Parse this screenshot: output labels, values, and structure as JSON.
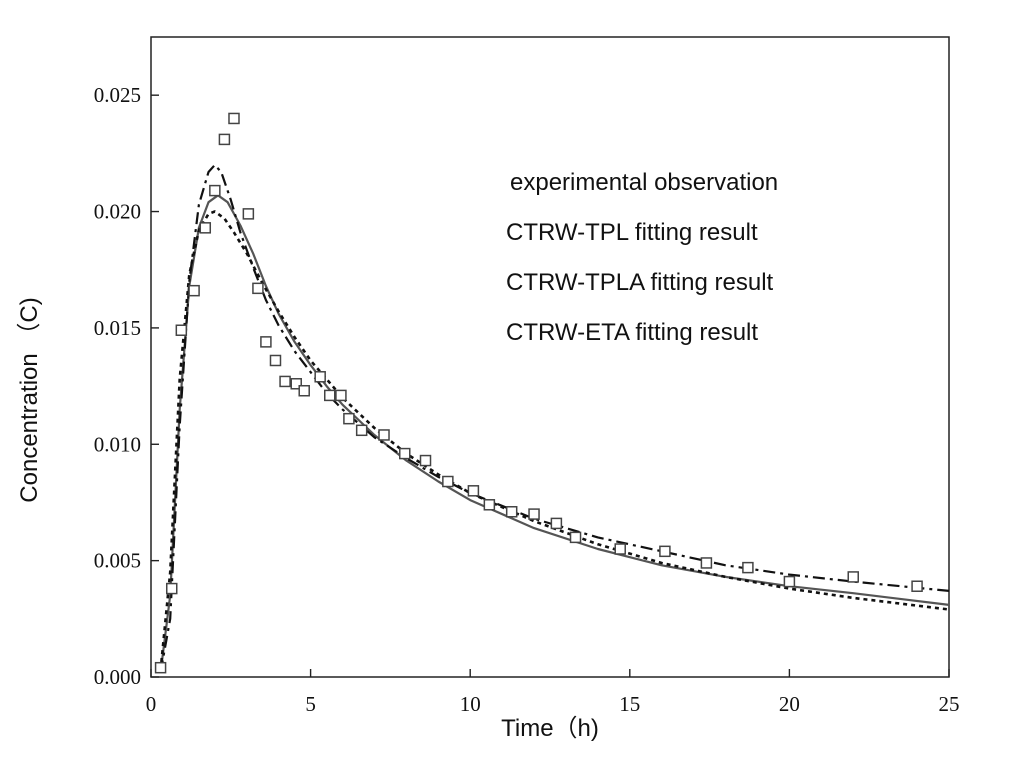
{
  "chart_data": {
    "type": "scatter",
    "title": "",
    "xlabel": "Time（h)",
    "ylabel": "Concentration （C)",
    "xlim": [
      0,
      25
    ],
    "ylim": [
      0,
      0.0275
    ],
    "xticks": [
      "0",
      "5",
      "10",
      "15",
      "20",
      "25"
    ],
    "yticks": [
      "0.000",
      "0.005",
      "0.010",
      "0.015",
      "0.020",
      "0.025"
    ],
    "grid": false,
    "legend_position": "top-right",
    "legend": [
      "experimental observation",
      "CTRW-TPL fitting result",
      "CTRW-TPLA fitting result",
      "CTRW-ETA fitting result"
    ],
    "series": [
      {
        "name": "experimental observation",
        "style": "square-marker",
        "x": [
          0.3,
          0.65,
          0.95,
          1.35,
          1.7,
          2.0,
          2.3,
          2.6,
          3.05,
          3.35,
          3.6,
          3.9,
          4.2,
          4.55,
          4.8,
          5.3,
          5.6,
          5.95,
          6.2,
          6.6,
          7.3,
          7.95,
          8.6,
          9.3,
          10.1,
          10.6,
          11.3,
          12.0,
          12.7,
          13.3,
          14.7,
          16.1,
          17.4,
          18.7,
          20.0,
          22.0,
          24.0
        ],
        "y": [
          0.0004,
          0.0038,
          0.0149,
          0.0166,
          0.0193,
          0.0209,
          0.0231,
          0.024,
          0.0199,
          0.0167,
          0.0144,
          0.0136,
          0.0127,
          0.0126,
          0.0123,
          0.0129,
          0.0121,
          0.0121,
          0.0111,
          0.0106,
          0.0104,
          0.0096,
          0.0093,
          0.0084,
          0.008,
          0.0074,
          0.0071,
          0.007,
          0.0066,
          0.006,
          0.0055,
          0.0054,
          0.0049,
          0.0047,
          0.0041,
          0.0043,
          0.0039
        ]
      },
      {
        "name": "CTRW-TPL fitting result",
        "style": "solid",
        "x": [
          0.3,
          0.6,
          0.9,
          1.2,
          1.5,
          1.8,
          2.1,
          2.4,
          2.8,
          3.2,
          3.6,
          4.0,
          4.5,
          5.0,
          5.5,
          6.0,
          7.0,
          8.0,
          9.0,
          10.0,
          12.0,
          14.0,
          16.0,
          18.0,
          20.0,
          22.0,
          25.0
        ],
        "y": [
          0.0002,
          0.0035,
          0.0115,
          0.0168,
          0.0193,
          0.0204,
          0.0207,
          0.0204,
          0.0194,
          0.0182,
          0.0168,
          0.0156,
          0.0144,
          0.0134,
          0.0125,
          0.0117,
          0.0104,
          0.0093,
          0.0084,
          0.0076,
          0.0064,
          0.0055,
          0.0048,
          0.0043,
          0.0039,
          0.0036,
          0.0031
        ]
      },
      {
        "name": "CTRW-TPLA fitting result",
        "style": "dash-dot",
        "x": [
          0.3,
          0.6,
          0.9,
          1.2,
          1.5,
          1.8,
          2.0,
          2.2,
          2.5,
          2.8,
          3.2,
          3.6,
          4.0,
          4.5,
          5.0,
          5.5,
          6.0,
          7.0,
          8.0,
          9.0,
          10.0,
          12.0,
          14.0,
          16.0,
          18.0,
          20.0,
          22.0,
          25.0
        ],
        "y": [
          0.0002,
          0.0025,
          0.0108,
          0.017,
          0.0203,
          0.0217,
          0.022,
          0.0217,
          0.0205,
          0.0191,
          0.0176,
          0.0162,
          0.0151,
          0.014,
          0.0131,
          0.0122,
          0.0115,
          0.0103,
          0.0094,
          0.0086,
          0.0079,
          0.0068,
          0.006,
          0.0054,
          0.0048,
          0.0044,
          0.0041,
          0.0037
        ]
      },
      {
        "name": "CTRW-ETA fitting result",
        "style": "dotted",
        "x": [
          0.3,
          0.6,
          0.9,
          1.2,
          1.5,
          1.8,
          2.0,
          2.3,
          2.6,
          3.0,
          3.5,
          4.0,
          4.5,
          5.0,
          5.5,
          6.0,
          7.0,
          8.0,
          9.0,
          10.0,
          12.0,
          14.0,
          16.0,
          18.0,
          20.0,
          22.0,
          25.0
        ],
        "y": [
          0.0003,
          0.0045,
          0.0128,
          0.0173,
          0.0192,
          0.0199,
          0.02,
          0.0197,
          0.0191,
          0.0182,
          0.0169,
          0.0157,
          0.0146,
          0.0136,
          0.0128,
          0.012,
          0.0107,
          0.0096,
          0.0087,
          0.0079,
          0.0067,
          0.0057,
          0.0049,
          0.0043,
          0.0038,
          0.0034,
          0.0029
        ]
      }
    ],
    "colors": {
      "axis": "#222222",
      "tpl": "#555555",
      "marker": "#444444",
      "line": "#111111"
    }
  }
}
